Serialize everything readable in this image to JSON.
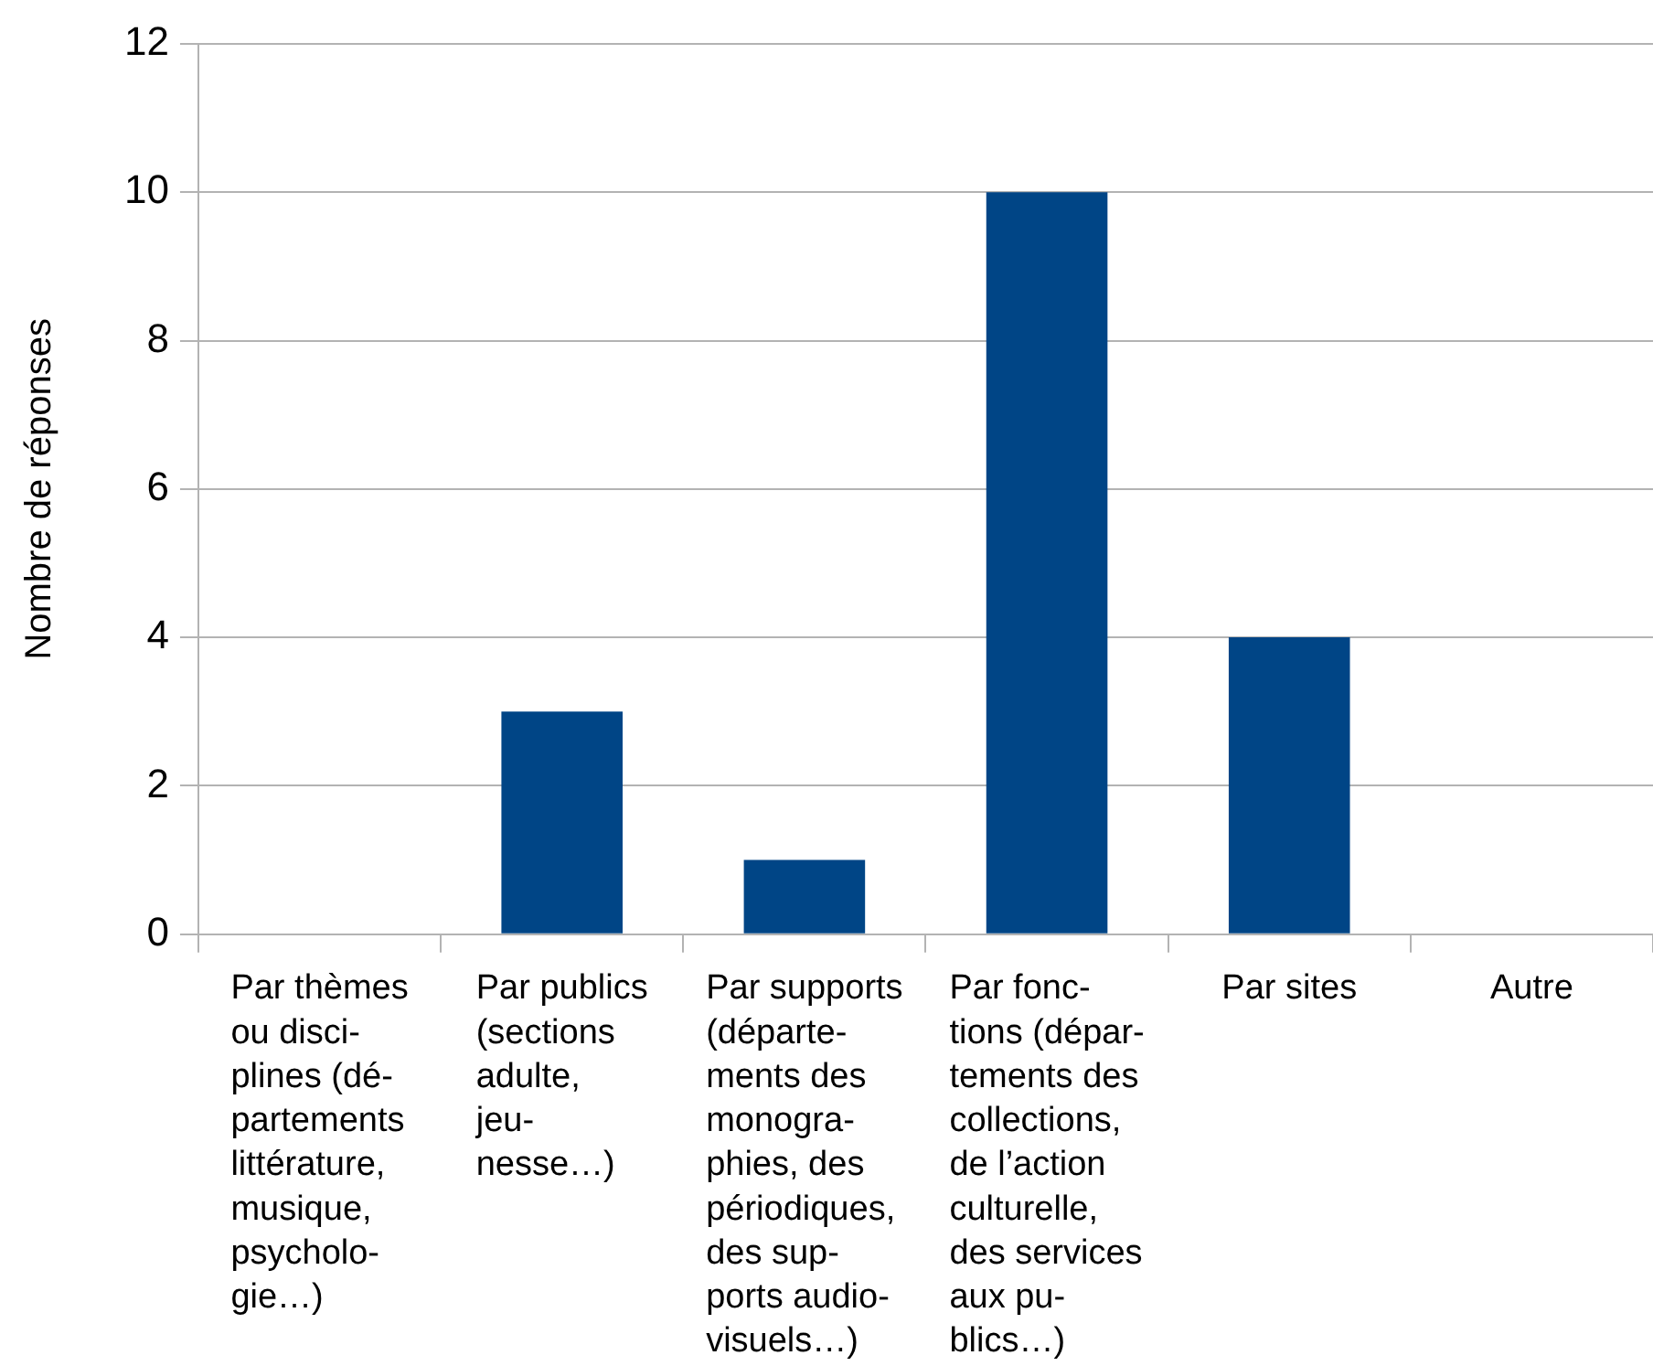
{
  "chart_data": {
    "type": "bar",
    "ylabel": "Nombre de réponses",
    "categories": [
      "Par thèmes\nou disci-\nplines (dé-\npartements\nlittérature,\nmusique,\npsycholo-\ngie…)",
      "Par publics\n(sections\nadulte,\njeu-\nnesse…)",
      "Par supports\n(départe-\nments des\nmonogra-\nphies, des\npériodiques,\ndes sup-\nports audio-\nvisuels…)",
      "Par fonc-\ntions (dépar-\ntements des\ncollections,\nde l’action\nculturelle,\ndes services\naux pu-\nblics…)",
      "Par sites",
      "Autre"
    ],
    "values": [
      0,
      3,
      1,
      10,
      4,
      0
    ],
    "color": "#004586",
    "ylim": [
      0,
      12
    ],
    "yticks": [
      0,
      2,
      4,
      6,
      8,
      10,
      12
    ],
    "grid": "y"
  }
}
